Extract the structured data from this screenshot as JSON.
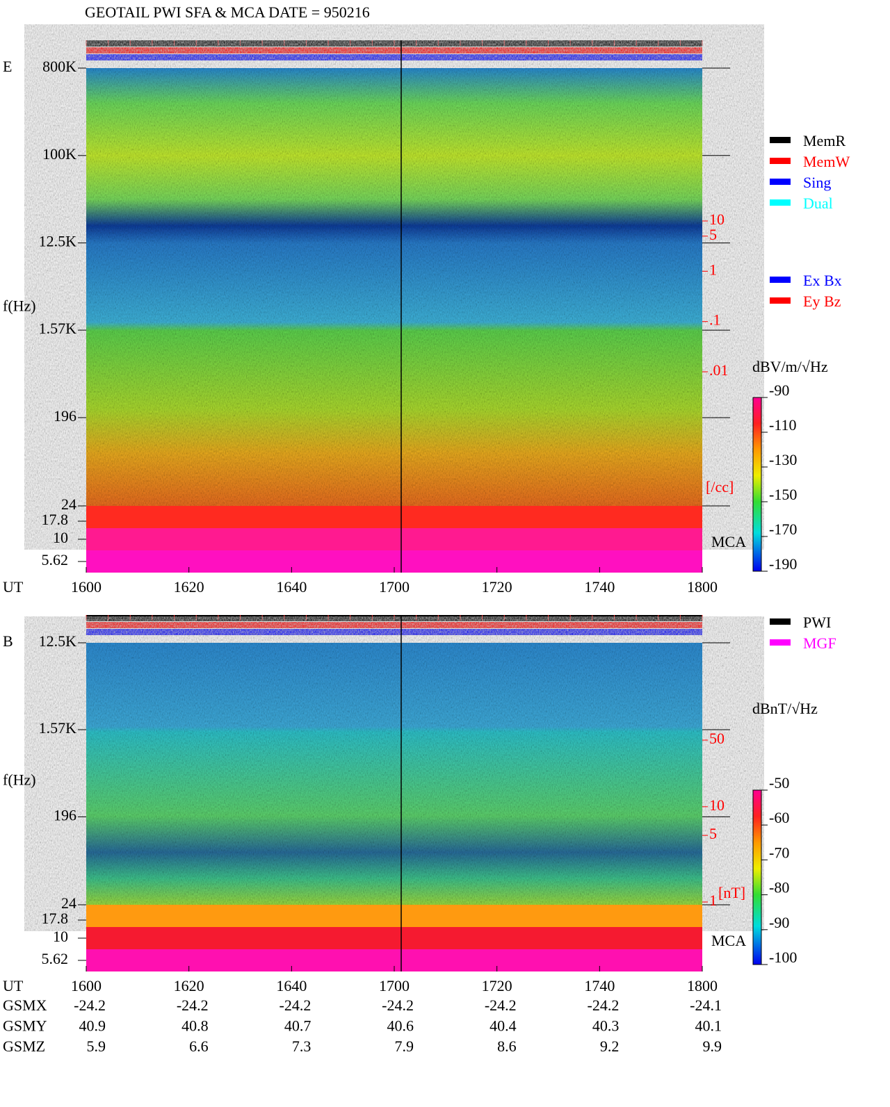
{
  "title": "GEOTAIL   PWI SFA & MCA    DATE = 950216",
  "time_axis": {
    "label": "UT",
    "ticks": [
      "1600",
      "1620",
      "1640",
      "1700",
      "1720",
      "1740",
      "1800"
    ]
  },
  "orbit": [
    {
      "label": "GSMX",
      "values": [
        -24.2,
        -24.2,
        -24.2,
        -24.2,
        -24.2,
        -24.2,
        -24.1
      ]
    },
    {
      "label": "GSMY",
      "values": [
        40.9,
        40.8,
        40.7,
        40.6,
        40.4,
        40.3,
        40.1
      ]
    },
    {
      "label": "GSMZ",
      "values": [
        5.9,
        6.6,
        7.3,
        7.9,
        8.6,
        9.2,
        9.9
      ]
    }
  ],
  "chart_data": [
    {
      "type": "spectrogram",
      "panel_label": "E",
      "y_label": "f(Hz)",
      "ylim": [
        24,
        800000
      ],
      "log_scale": true,
      "yticks": [
        {
          "value": 800000,
          "label": "800K"
        },
        {
          "value": 100000,
          "label": "100K"
        },
        {
          "value": 12500,
          "label": "12.5K"
        },
        {
          "value": 1570,
          "label": "1.57K"
        },
        196,
        24
      ],
      "mca_label": "MCA",
      "mca_channels": [
        17.8,
        10,
        5.62
      ],
      "density_unit": "[/cc]",
      "density_lim": [
        0.01,
        10
      ],
      "density_ticks": [
        10,
        5,
        1,
        {
          "value": 0.1,
          "label": ".1"
        },
        {
          "value": 0.01,
          "label": ".01"
        }
      ],
      "colorbar": {
        "unit": "dBV/m/√Hz",
        "clim": [
          -190,
          -90
        ],
        "ticks": [
          -90,
          -110,
          -130,
          -150,
          -170,
          -190
        ]
      },
      "legend": [
        [
          {
            "name": "MemR",
            "color": "#000000"
          },
          {
            "name": "MemW",
            "color": "#ff0000"
          },
          {
            "name": "Sing",
            "color": "#0000ff"
          },
          {
            "name": "Dual",
            "color": "#00ffff"
          }
        ],
        [
          {
            "name": "Ex Bx",
            "color": "#0000ff"
          },
          {
            "name": "Ey Bz",
            "color": "#ff0000"
          }
        ]
      ]
    },
    {
      "type": "spectrogram",
      "panel_label": "B",
      "y_label": "f(Hz)",
      "ylim": [
        24,
        12500
      ],
      "log_scale": true,
      "yticks": [
        {
          "value": 12500,
          "label": "12.5K"
        },
        {
          "value": 1570,
          "label": "1.57K"
        },
        196,
        24
      ],
      "mca_label": "MCA",
      "mca_channels": [
        17.8,
        10,
        5.62
      ],
      "density_unit": "[nT]",
      "density_lim": [
        1,
        50
      ],
      "density_ticks": [
        50,
        10,
        5,
        1
      ],
      "colorbar": {
        "unit": "dBnT/√Hz",
        "clim": [
          -100,
          -50
        ],
        "ticks": [
          -50,
          -60,
          -70,
          -80,
          -90,
          -100
        ]
      },
      "legend": [
        [
          {
            "name": "PWI",
            "color": "#000000"
          },
          {
            "name": "MGF",
            "color": "#ff00ff"
          }
        ]
      ]
    }
  ]
}
